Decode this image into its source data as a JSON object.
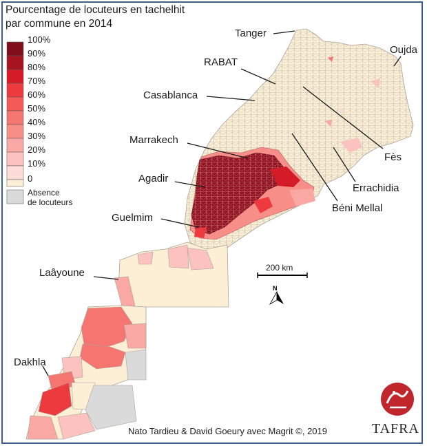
{
  "title": {
    "line1": "Pourcentage de locuteurs en tachelhit",
    "line2": "par commune en 2014"
  },
  "legend": {
    "items": [
      {
        "label": "100%",
        "color": "#7f0f1a"
      },
      {
        "label": "90%",
        "color": "#a51420"
      },
      {
        "label": "80%",
        "color": "#d61b28"
      },
      {
        "label": "70%",
        "color": "#ec3a3e"
      },
      {
        "label": "60%",
        "color": "#f45b58"
      },
      {
        "label": "50%",
        "color": "#f57670"
      },
      {
        "label": "40%",
        "color": "#f78e88"
      },
      {
        "label": "30%",
        "color": "#f9a8a3"
      },
      {
        "label": "20%",
        "color": "#fbc2bf"
      },
      {
        "label": "10%",
        "color": "#fcdcd7"
      },
      {
        "label": "0",
        "color": "#fcefd6"
      }
    ],
    "absence": {
      "label_line1": "Absence",
      "label_line2": "de locuteurs",
      "color": "#dadada"
    }
  },
  "cities": [
    {
      "name": "Tanger"
    },
    {
      "name": "Oujda"
    },
    {
      "name": "RABAT"
    },
    {
      "name": "Casablanca"
    },
    {
      "name": "Fès"
    },
    {
      "name": "Marrakech"
    },
    {
      "name": "Agadir"
    },
    {
      "name": "Errachidia"
    },
    {
      "name": "Béni Mellal"
    },
    {
      "name": "Guelmim"
    },
    {
      "name": "Laâyoune"
    },
    {
      "name": "Dakhla"
    }
  ],
  "scale_bar": {
    "label": "200 km"
  },
  "north_arrow": {
    "label": "N"
  },
  "credit": "Nato Tardieu & David Goeury avec Magrit ©, 2019",
  "brand": {
    "name": "TAFRA",
    "color": "#c0272d"
  }
}
